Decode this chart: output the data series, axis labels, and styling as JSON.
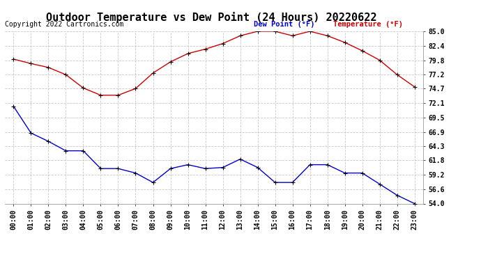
{
  "title": "Outdoor Temperature vs Dew Point (24 Hours) 20220622",
  "copyright": "Copyright 2022 Cartronics.com",
  "legend_dew": "Dew Point (°F)",
  "legend_temp": "Temperature (°F)",
  "x_labels": [
    "00:00",
    "01:00",
    "02:00",
    "03:00",
    "04:00",
    "05:00",
    "06:00",
    "07:00",
    "08:00",
    "09:00",
    "10:00",
    "11:00",
    "12:00",
    "13:00",
    "14:00",
    "15:00",
    "16:00",
    "17:00",
    "18:00",
    "19:00",
    "20:00",
    "21:00",
    "22:00",
    "23:00"
  ],
  "temperature": [
    80.0,
    79.2,
    78.5,
    77.2,
    74.8,
    73.5,
    73.5,
    74.7,
    77.5,
    79.5,
    81.0,
    81.8,
    82.8,
    84.2,
    85.0,
    85.0,
    84.2,
    85.0,
    84.2,
    83.0,
    81.5,
    79.8,
    77.2,
    75.0
  ],
  "dew_point": [
    71.5,
    66.7,
    65.2,
    63.5,
    63.5,
    60.3,
    60.3,
    59.5,
    57.8,
    60.3,
    61.0,
    60.3,
    60.5,
    62.0,
    60.5,
    57.8,
    57.8,
    61.0,
    61.0,
    59.5,
    59.5,
    57.5,
    55.5,
    54.0
  ],
  "ylim_min": 54.0,
  "ylim_max": 85.0,
  "yticks": [
    54.0,
    56.6,
    59.2,
    61.8,
    64.3,
    66.9,
    69.5,
    72.1,
    74.7,
    77.2,
    79.8,
    82.4,
    85.0
  ],
  "ytick_labels": [
    "54.0",
    "56.6",
    "59.2",
    "61.8",
    "64.3",
    "66.9",
    "69.5",
    "72.1",
    "74.7",
    "77.2",
    "79.8",
    "82.4",
    "85.0"
  ],
  "temp_color": "#cc0000",
  "dew_color": "#0000cc",
  "marker_color": "#000000",
  "grid_color": "#c8c8c8",
  "bg_color": "#ffffff",
  "title_fontsize": 11,
  "copyright_fontsize": 7,
  "legend_fontsize": 7.5,
  "tick_fontsize": 7
}
